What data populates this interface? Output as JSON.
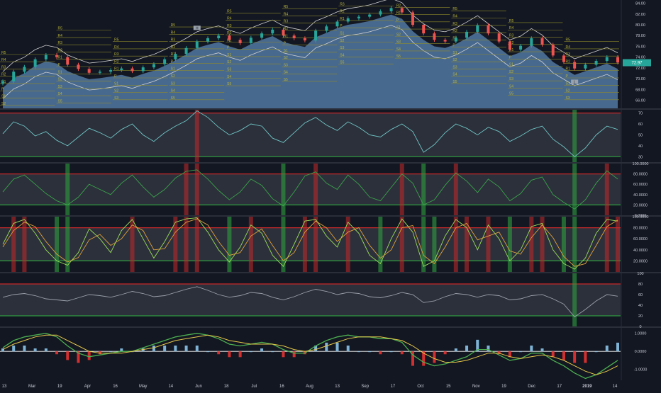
{
  "theme": {
    "background": "#131722",
    "pane_divider": "#2a2e39",
    "area_fill": "#5b86b3",
    "bullish": "#26a69a",
    "bearish": "#ef5350",
    "overbought_red": "#c62828",
    "oversold_green": "#2e9d3f",
    "pivot_line": "#8e8a2a",
    "pivot_text": "#b9b43a",
    "axis_text": "#c9ccd6"
  },
  "time_axis": {
    "labels": [
      "13",
      "Mar",
      "19",
      "Apr",
      "16",
      "May",
      "14",
      "Jun",
      "18",
      "Jul",
      "16",
      "Aug",
      "13",
      "Sep",
      "17",
      "Oct",
      "15",
      "Nov",
      "19",
      "Dec",
      "17",
      "2019",
      "14"
    ]
  },
  "chart_data": [
    {
      "type": "candlestick",
      "pane": "price",
      "y_ticks": [
        "84.00",
        "82.00",
        "80.00",
        "78.00",
        "76.00",
        "74.00",
        "72.00",
        "70.00",
        "68.00",
        "66.00"
      ],
      "ylim": [
        64.5,
        84.6
      ],
      "last_price": "72.97",
      "close": [
        69.5,
        71.3,
        72.2,
        73.6,
        74.4,
        74.0,
        72.6,
        71.8,
        71.1,
        71.3,
        71.6,
        71.9,
        71.4,
        72.1,
        72.7,
        73.6,
        74.6,
        75.7,
        76.9,
        77.5,
        78.0,
        77.2,
        76.6,
        77.6,
        78.4,
        79.1,
        78.0,
        77.5,
        77.1,
        78.9,
        79.7,
        80.6,
        81.2,
        81.5,
        81.9,
        82.5,
        83.1,
        82.3,
        80.0,
        78.4,
        77.2,
        76.9,
        77.6,
        78.7,
        79.9,
        78.4,
        76.9,
        75.4,
        76.1,
        77.5,
        76.3,
        74.3,
        73.1,
        71.9,
        72.6,
        73.3,
        74.0,
        73.0
      ],
      "pivot_labels": [
        "R5",
        "R4",
        "R3",
        "R2",
        "R1",
        "P",
        "S1",
        "S2",
        "S3",
        "S4",
        "S5"
      ],
      "labels": [
        "H",
        "L"
      ]
    },
    {
      "type": "line",
      "pane": "rsi",
      "y_ticks": [
        "70",
        "60",
        "50",
        "40",
        "30"
      ],
      "ylim": [
        25,
        73
      ],
      "overbought": 70,
      "oversold": 30,
      "values": [
        51,
        62,
        58,
        49,
        53,
        45,
        40,
        48,
        56,
        52,
        47,
        55,
        60,
        50,
        44,
        52,
        58,
        63,
        72,
        66,
        57,
        50,
        54,
        60,
        58,
        47,
        43,
        52,
        61,
        66,
        59,
        54,
        62,
        57,
        50,
        48,
        55,
        60,
        53,
        34,
        41,
        52,
        60,
        56,
        50,
        57,
        53,
        44,
        49,
        55,
        58,
        46,
        39,
        30,
        38,
        50,
        58,
        55
      ]
    },
    {
      "type": "line",
      "pane": "oscillator-2",
      "y_ticks": [
        "100.0000",
        "80.0000",
        "60.0000",
        "40.0000",
        "20.0000",
        "0.0000"
      ],
      "ylim": [
        0,
        100
      ],
      "overbought": 80,
      "oversold": 20,
      "values": [
        45,
        70,
        78,
        60,
        42,
        28,
        20,
        35,
        60,
        50,
        40,
        62,
        78,
        55,
        35,
        50,
        72,
        85,
        88,
        70,
        48,
        30,
        45,
        70,
        58,
        32,
        18,
        45,
        76,
        84,
        62,
        50,
        78,
        60,
        35,
        28,
        54,
        80,
        62,
        20,
        30,
        58,
        82,
        66,
        44,
        70,
        55,
        28,
        42,
        68,
        74,
        40,
        25,
        12,
        30,
        62,
        86,
        70
      ]
    },
    {
      "type": "line",
      "pane": "stochastic",
      "y_ticks": [
        "100.0000",
        "80.0000",
        "60.0000",
        "40.0000",
        "20.0000"
      ],
      "ylim": [
        0,
        100
      ],
      "overbought": 80,
      "oversold": 20,
      "series": [
        {
          "values": [
            50,
            88,
            95,
            70,
            40,
            20,
            12,
            35,
            78,
            60,
            35,
            75,
            95,
            60,
            25,
            55,
            90,
            96,
            98,
            72,
            40,
            18,
            45,
            85,
            70,
            30,
            10,
            50,
            92,
            95,
            65,
            45,
            90,
            70,
            30,
            15,
            60,
            96,
            72,
            10,
            20,
            65,
            95,
            80,
            40,
            85,
            60,
            20,
            40,
            82,
            88,
            40,
            15,
            5,
            25,
            70,
            95,
            92
          ]
        },
        {
          "values": [
            45,
            75,
            90,
            82,
            55,
            32,
            18,
            26,
            58,
            68,
            48,
            60,
            85,
            75,
            40,
            42,
            72,
            90,
            96,
            85,
            55,
            30,
            35,
            65,
            78,
            48,
            20,
            35,
            72,
            92,
            80,
            55,
            72,
            80,
            48,
            25,
            40,
            80,
            84,
            30,
            15,
            45,
            80,
            88,
            58,
            65,
            72,
            38,
            32,
            62,
            85,
            62,
            28,
            10,
            15,
            48,
            82,
            94
          ]
        }
      ]
    },
    {
      "type": "line",
      "pane": "oscillator-4",
      "y_ticks": [
        "100",
        "80",
        "60",
        "40",
        "20",
        "0"
      ],
      "ylim": [
        0,
        100
      ],
      "overbought": 80,
      "oversold": 20,
      "values": [
        55,
        60,
        62,
        58,
        52,
        50,
        48,
        54,
        60,
        58,
        55,
        60,
        66,
        62,
        56,
        58,
        64,
        70,
        75,
        68,
        60,
        55,
        58,
        64,
        62,
        55,
        50,
        56,
        64,
        70,
        66,
        60,
        64,
        62,
        56,
        54,
        58,
        64,
        60,
        45,
        48,
        56,
        62,
        60,
        55,
        60,
        58,
        50,
        52,
        58,
        60,
        52,
        42,
        18,
        32,
        48,
        60,
        57
      ]
    },
    {
      "type": "line",
      "pane": "macd",
      "y_ticks": [
        "1.0000",
        "0.0000",
        "-1.0000"
      ],
      "ylim": [
        -1.6,
        1.3
      ],
      "series": [
        {
          "values": [
            0.2,
            0.6,
            0.8,
            0.9,
            1.0,
            0.8,
            0.3,
            -0.1,
            -0.3,
            -0.2,
            -0.1,
            0.0,
            0.0,
            0.2,
            0.4,
            0.6,
            0.8,
            0.9,
            1.0,
            0.9,
            0.7,
            0.4,
            0.3,
            0.4,
            0.5,
            0.4,
            0.1,
            -0.1,
            -0.1,
            0.3,
            0.6,
            0.8,
            0.9,
            0.8,
            0.8,
            0.7,
            0.7,
            0.5,
            -0.2,
            -0.6,
            -0.8,
            -0.7,
            -0.5,
            -0.3,
            0.1,
            0.1,
            -0.2,
            -0.5,
            -0.4,
            -0.1,
            -0.1,
            -0.5,
            -0.8,
            -1.2,
            -1.5,
            -1.3,
            -0.9,
            -0.5
          ]
        },
        {
          "values": [
            0.1,
            0.4,
            0.6,
            0.8,
            0.9,
            0.9,
            0.6,
            0.3,
            0.0,
            -0.1,
            -0.1,
            -0.1,
            0.0,
            0.1,
            0.2,
            0.4,
            0.6,
            0.7,
            0.8,
            0.9,
            0.8,
            0.6,
            0.5,
            0.4,
            0.4,
            0.4,
            0.3,
            0.1,
            0.0,
            0.1,
            0.3,
            0.5,
            0.7,
            0.8,
            0.8,
            0.8,
            0.7,
            0.6,
            0.3,
            -0.1,
            -0.4,
            -0.6,
            -0.6,
            -0.5,
            -0.3,
            -0.1,
            -0.1,
            -0.3,
            -0.4,
            -0.3,
            -0.2,
            -0.3,
            -0.5,
            -0.8,
            -1.1,
            -1.3,
            -1.1,
            -0.8
          ]
        }
      ]
    }
  ]
}
